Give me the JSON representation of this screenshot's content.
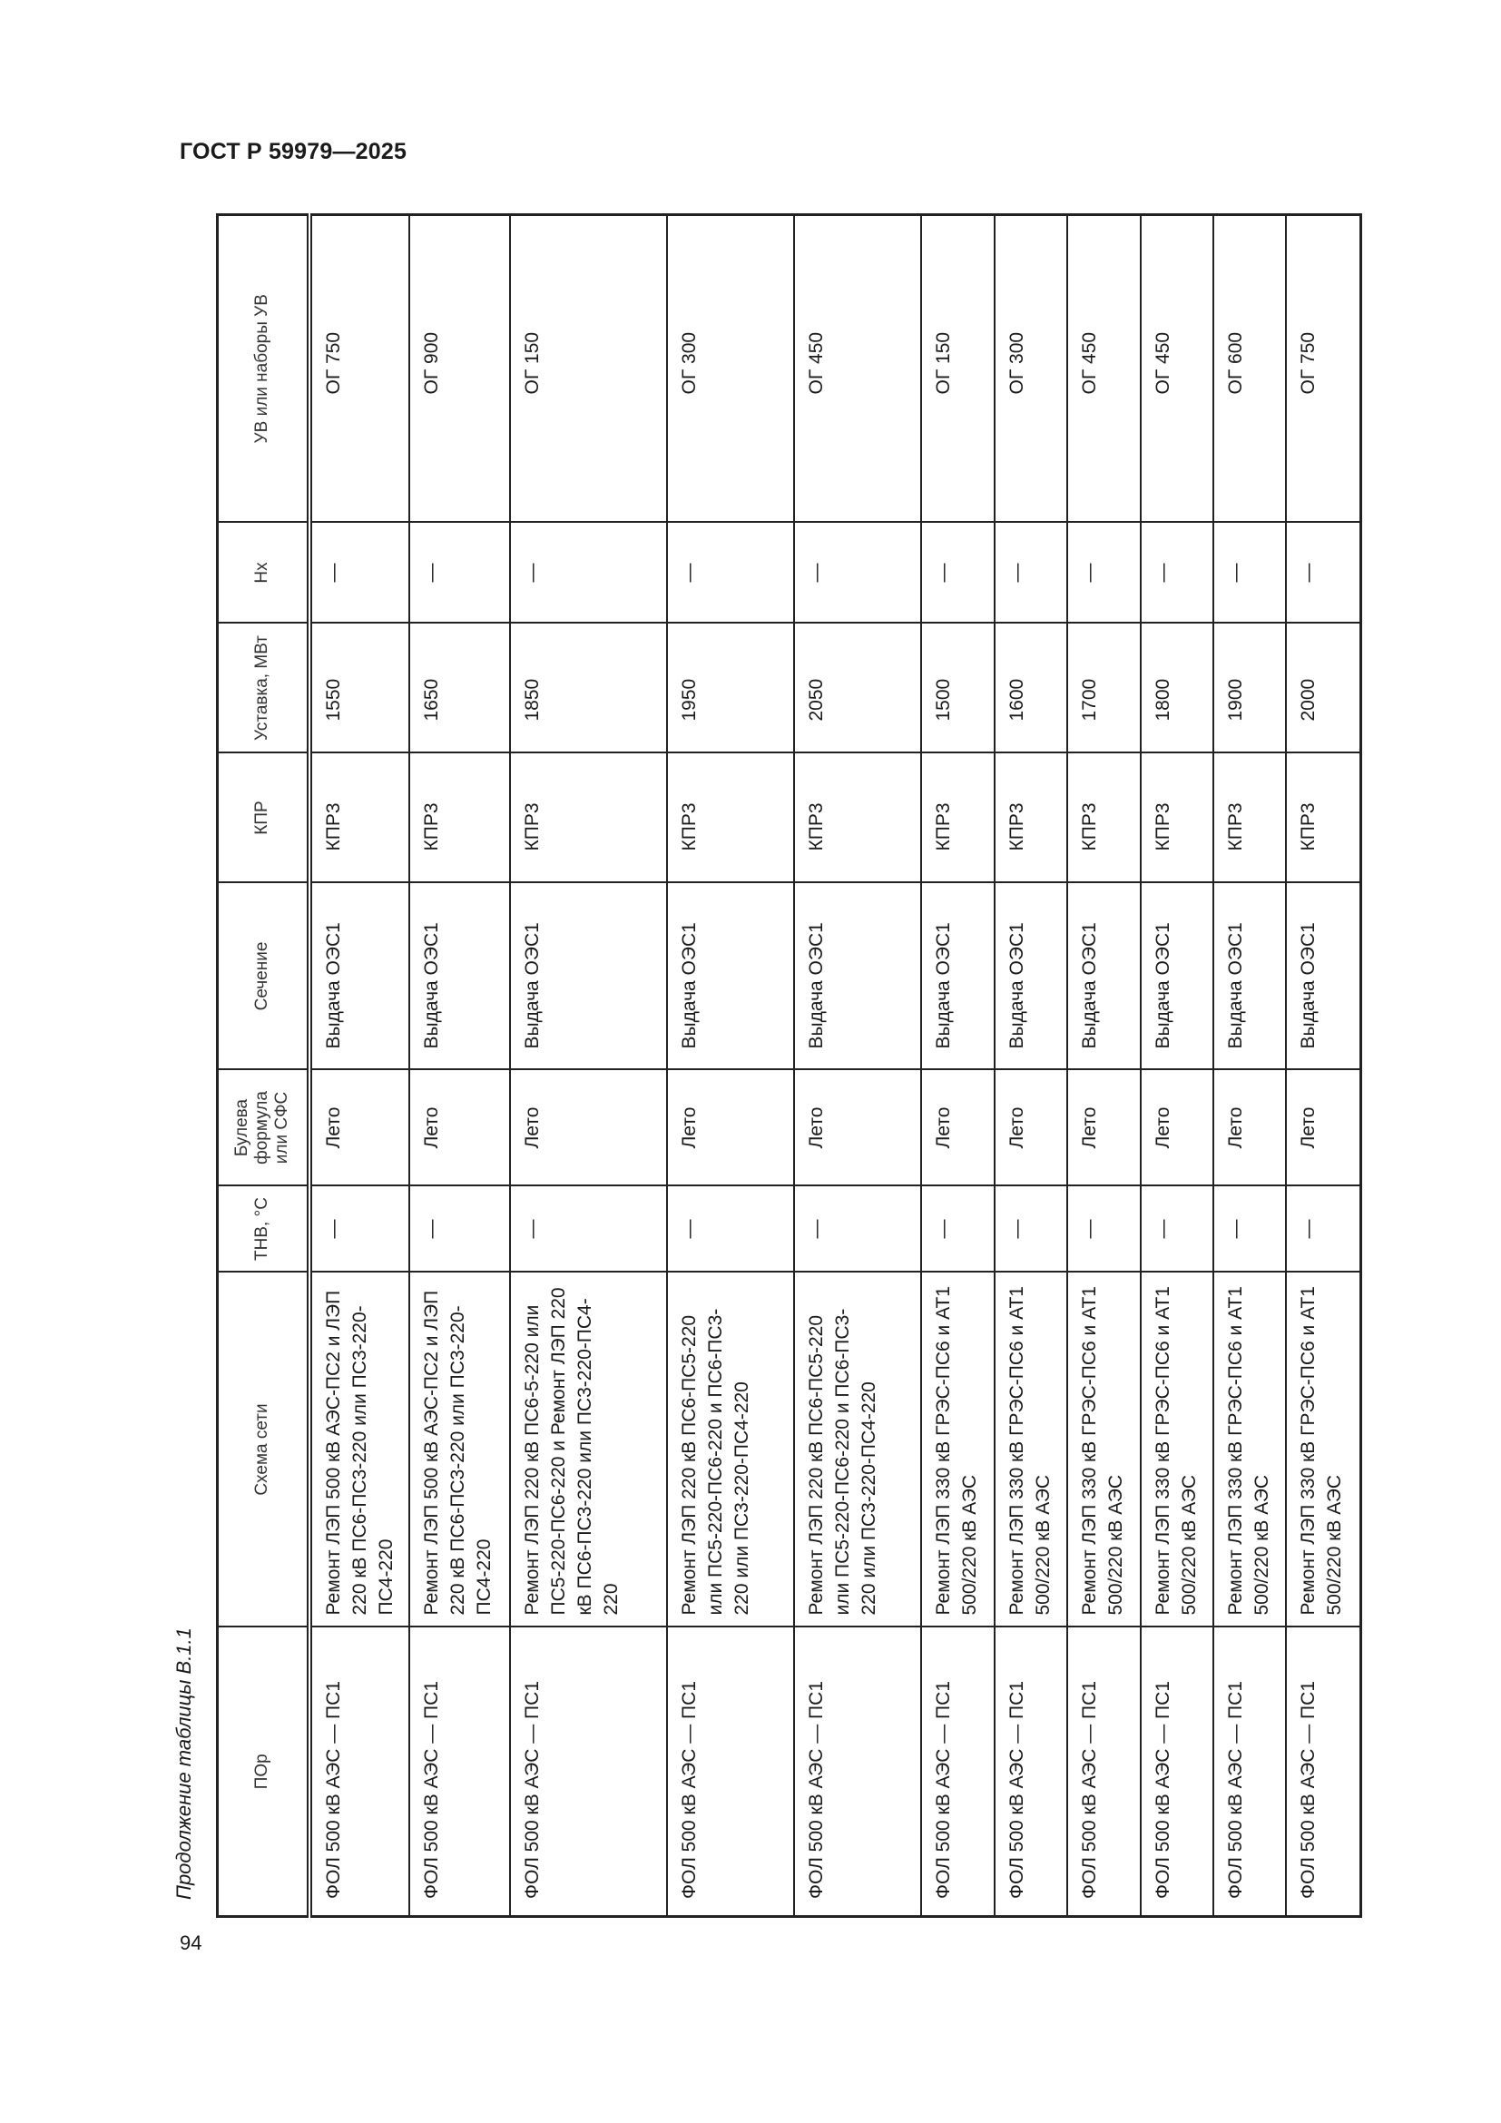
{
  "header": {
    "doc_title": "ГОСТ Р 59979—2025"
  },
  "caption": "Продолжение таблицы В.1.1",
  "page_number": "94",
  "table": {
    "columns": [
      "ПОр",
      "Схема сети",
      "ТНВ, °С",
      "Булева формула или СФС",
      "Сечение",
      "КПР",
      "Уставка, МВт",
      "Нх",
      "УВ или наборы УВ"
    ],
    "rows": [
      [
        "ФОЛ 500 кВ АЭС — ПС1",
        "Ремонт ЛЭП 500 кВ АЭС-ПС2 и ЛЭП 220 кВ ПС6-ПС3-220 или ПС3-220-ПС4-220",
        "—",
        "Лето",
        "Выдача ОЭС1",
        "КПР3",
        "1550",
        "—",
        "ОГ 750"
      ],
      [
        "ФОЛ 500 кВ АЭС — ПС1",
        "Ремонт ЛЭП 500 кВ АЭС-ПС2 и ЛЭП 220 кВ ПС6-ПС3-220 или ПС3-220-ПС4-220",
        "—",
        "Лето",
        "Выдача ОЭС1",
        "КПР3",
        "1650",
        "—",
        "ОГ 900"
      ],
      [
        "ФОЛ 500 кВ АЭС — ПС1",
        "Ремонт ЛЭП 220 кВ ПС6-5-220 или ПС5-220-ПС6-220 и Ремонт ЛЭП 220 кВ ПС6-ПС3-220 или ПС3-220-ПС4-220",
        "—",
        "Лето",
        "Выдача ОЭС1",
        "КПР3",
        "1850",
        "—",
        "ОГ 150"
      ],
      [
        "ФОЛ 500 кВ АЭС — ПС1",
        "Ремонт ЛЭП 220 кВ ПС6-ПС5-220 или ПС5-220-ПС6-220 и ПС6-ПС3-220 или ПС3-220-ПС4-220",
        "—",
        "Лето",
        "Выдача ОЭС1",
        "КПР3",
        "1950",
        "—",
        "ОГ 300"
      ],
      [
        "ФОЛ 500 кВ АЭС — ПС1",
        "Ремонт ЛЭП 220 кВ ПС6-ПС5-220 или ПС5-220-ПС6-220 и ПС6-ПС3-220 или ПС3-220-ПС4-220",
        "—",
        "Лето",
        "Выдача ОЭС1",
        "КПР3",
        "2050",
        "—",
        "ОГ 450"
      ],
      [
        "ФОЛ 500 кВ АЭС — ПС1",
        "Ремонт ЛЭП 330 кВ ГРЭС-ПС6 и АТ1 500/220 кВ АЭС",
        "—",
        "Лето",
        "Выдача ОЭС1",
        "КПР3",
        "1500",
        "—",
        "ОГ 150"
      ],
      [
        "ФОЛ 500 кВ АЭС — ПС1",
        "Ремонт ЛЭП 330 кВ ГРЭС-ПС6 и АТ1 500/220 кВ АЭС",
        "—",
        "Лето",
        "Выдача ОЭС1",
        "КПР3",
        "1600",
        "—",
        "ОГ 300"
      ],
      [
        "ФОЛ 500 кВ АЭС — ПС1",
        "Ремонт ЛЭП 330 кВ ГРЭС-ПС6 и АТ1 500/220 кВ АЭС",
        "—",
        "Лето",
        "Выдача ОЭС1",
        "КПР3",
        "1700",
        "—",
        "ОГ 450"
      ],
      [
        "ФОЛ 500 кВ АЭС — ПС1",
        "Ремонт ЛЭП 330 кВ ГРЭС-ПС6 и АТ1 500/220 кВ АЭС",
        "—",
        "Лето",
        "Выдача ОЭС1",
        "КПР3",
        "1800",
        "—",
        "ОГ 450"
      ],
      [
        "ФОЛ 500 кВ АЭС — ПС1",
        "Ремонт ЛЭП 330 кВ ГРЭС-ПС6 и АТ1 500/220 кВ АЭС",
        "—",
        "Лето",
        "Выдача ОЭС1",
        "КПР3",
        "1900",
        "—",
        "ОГ 600"
      ],
      [
        "ФОЛ 500 кВ АЭС — ПС1",
        "Ремонт ЛЭП 330 кВ ГРЭС-ПС6 и АТ1 500/220 кВ АЭС",
        "—",
        "Лето",
        "Выдача ОЭС1",
        "КПР3",
        "2000",
        "—",
        "ОГ 750"
      ]
    ]
  }
}
